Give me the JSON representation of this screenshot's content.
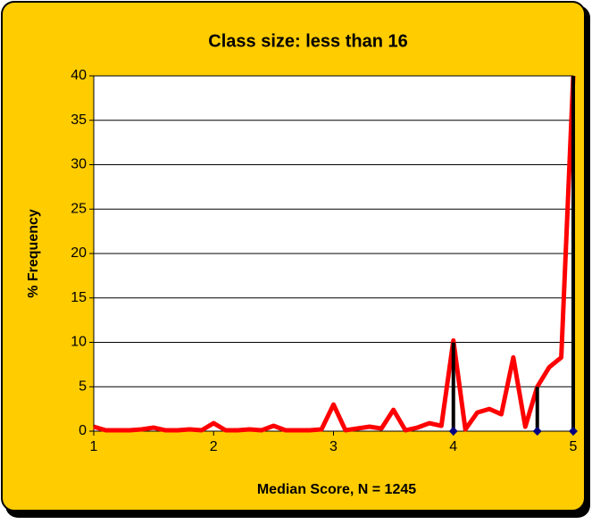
{
  "chart_data": {
    "type": "line",
    "title": "Class size: less than 16",
    "xlabel": "Median Score, N = 1245",
    "ylabel": "% Frequency",
    "x": [
      1.0,
      1.1,
      1.2,
      1.3,
      1.4,
      1.5,
      1.6,
      1.7,
      1.8,
      1.9,
      2.0,
      2.1,
      2.2,
      2.3,
      2.4,
      2.5,
      2.6,
      2.7,
      2.8,
      2.9,
      3.0,
      3.1,
      3.2,
      3.3,
      3.4,
      3.5,
      3.6,
      3.7,
      3.8,
      3.9,
      4.0,
      4.1,
      4.2,
      4.3,
      4.4,
      4.5,
      4.6,
      4.7,
      4.8,
      4.9,
      5.0
    ],
    "series": [
      {
        "color": "#ff0000",
        "values": [
          0.5,
          0.1,
          0.1,
          0.1,
          0.2,
          0.4,
          0.1,
          0.1,
          0.2,
          0.1,
          0.9,
          0.1,
          0.1,
          0.2,
          0.1,
          0.6,
          0.1,
          0.1,
          0.1,
          0.2,
          3.0,
          0.1,
          0.3,
          0.5,
          0.3,
          2.4,
          0.1,
          0.4,
          0.9,
          0.6,
          10.2,
          0.2,
          2.1,
          2.5,
          1.9,
          8.3,
          0.5,
          5.0,
          7.2,
          8.3,
          40
        ]
      },
      {
        "color": "#000000",
        "marker_color": "#000080",
        "style": "stem",
        "x": [
          4,
          4.7,
          5
        ],
        "values": [
          10,
          5,
          40
        ]
      }
    ],
    "xlim": [
      1,
      5
    ],
    "xticks": [
      1,
      2,
      3,
      4,
      5
    ],
    "ylim": [
      0,
      40
    ],
    "yticks": [
      0,
      5,
      10,
      15,
      20,
      25,
      30,
      35,
      40
    ],
    "grid": true
  }
}
